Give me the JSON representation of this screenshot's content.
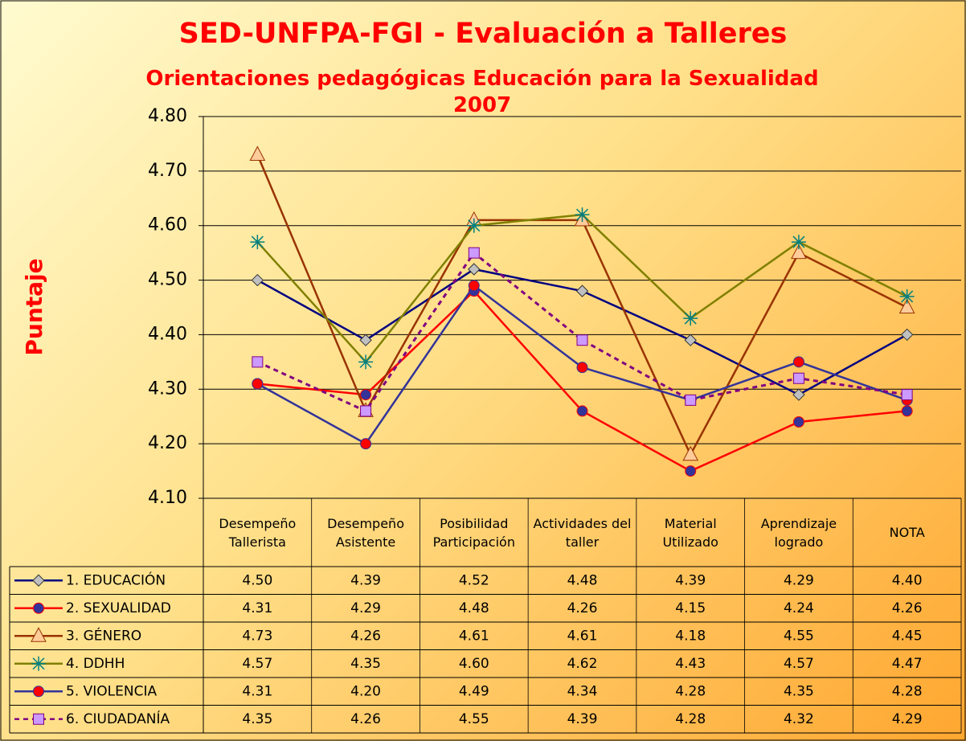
{
  "chart_data": {
    "type": "line",
    "title": "SED-UNFPA-FGI - Evaluación a Talleres",
    "subtitle": "Orientaciones pedagógicas Educación para la Sexualidad 2007",
    "y_label": "Puntaje",
    "categories": [
      "Desempeño Tallerista",
      "Desempeño Asistente",
      "Posibilidad Participación",
      "Actividades del taller",
      "Material Utilizado",
      "Aprendizaje logrado",
      "NOTA"
    ],
    "ylim": [
      4.1,
      4.8
    ],
    "yticks": [
      {
        "value": 4.1,
        "label": "4.10"
      },
      {
        "value": 4.2,
        "label": "4.20"
      },
      {
        "value": 4.3,
        "label": "4.30"
      },
      {
        "value": 4.4,
        "label": "4.40"
      },
      {
        "value": 4.5,
        "label": "4.50"
      },
      {
        "value": 4.6,
        "label": "4.60"
      },
      {
        "value": 4.7,
        "label": "4.70"
      },
      {
        "value": 4.8,
        "label": "4.80"
      }
    ],
    "grid": true,
    "series": [
      {
        "name": "1. EDUCACIÓN",
        "color": "#000080",
        "marker": "diamond",
        "marker_color": "#c0c0c0",
        "values": [
          4.5,
          4.39,
          4.52,
          4.48,
          4.39,
          4.29,
          4.4
        ],
        "value_labels": [
          "4.50",
          "4.39",
          "4.52",
          "4.48",
          "4.39",
          "4.29",
          "4.40"
        ]
      },
      {
        "name": "2. SEXUALIDAD",
        "color": "#ff0000",
        "marker": "circle",
        "marker_color": "#333399",
        "values": [
          4.31,
          4.29,
          4.48,
          4.26,
          4.15,
          4.24,
          4.26
        ],
        "value_labels": [
          "4.31",
          "4.29",
          "4.48",
          "4.26",
          "4.15",
          "4.24",
          "4.26"
        ]
      },
      {
        "name": "3. GÉNERO",
        "color": "#993300",
        "marker": "triangle",
        "marker_color": "#ffcc99",
        "values": [
          4.73,
          4.26,
          4.61,
          4.61,
          4.18,
          4.55,
          4.45
        ],
        "value_labels": [
          "4.73",
          "4.26",
          "4.61",
          "4.61",
          "4.18",
          "4.55",
          "4.45"
        ]
      },
      {
        "name": "4. DDHH",
        "color": "#808000",
        "marker": "star",
        "marker_color": "#008080",
        "values": [
          4.57,
          4.35,
          4.6,
          4.62,
          4.43,
          4.57,
          4.47
        ],
        "value_labels": [
          "4.57",
          "4.35",
          "4.60",
          "4.62",
          "4.43",
          "4.57",
          "4.47"
        ]
      },
      {
        "name": "5. VIOLENCIA",
        "color": "#333399",
        "marker": "circle",
        "marker_color": "#ff0000",
        "values": [
          4.31,
          4.2,
          4.49,
          4.34,
          4.28,
          4.35,
          4.28
        ],
        "value_labels": [
          "4.31",
          "4.20",
          "4.49",
          "4.34",
          "4.28",
          "4.35",
          "4.28"
        ]
      },
      {
        "name": "6. CIUDADANÍA",
        "color": "#800080",
        "marker": "square",
        "marker_color": "#cc99ff",
        "dash": true,
        "values": [
          4.35,
          4.26,
          4.55,
          4.39,
          4.28,
          4.32,
          4.29
        ],
        "value_labels": [
          "4.35",
          "4.26",
          "4.55",
          "4.39",
          "4.28",
          "4.32",
          "4.29"
        ]
      }
    ]
  }
}
